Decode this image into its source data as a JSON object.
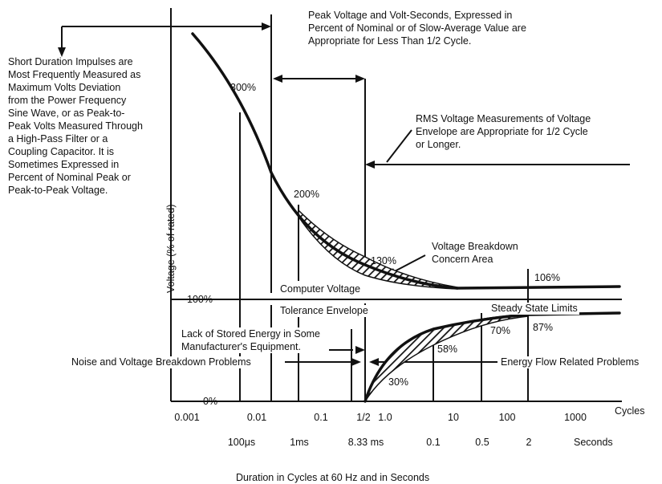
{
  "notes": {
    "peak": "Peak Voltage and Volt-Seconds, Expressed in\nPercent of Nominal or of Slow-Average Value are\nAppropriate for Less Than 1/2 Cycle.",
    "short": "Short Duration Impulses are\nMost Frequently Measured as\nMaximum Volts Deviation\nfrom the Power Frequency\nSine Wave, or as Peak-to-\nPeak Volts Measured Through\na High-Pass Filter or a\nCoupling Capacitor. It is\nSometimes Expressed in\nPercent of Nominal Peak or\nPeak-to-Peak Voltage.",
    "rms": "RMS Voltage Measurements of Voltage\nEnvelope are Appropriate for 1/2 Cycle\nor Longer.",
    "breakdown_concern": "Voltage Breakdown\nConcern Area",
    "computer_voltage": "Computer Voltage",
    "tolerance_envelope": "Tolerance Envelope",
    "steady_state": "Steady State Limits",
    "stored_energy": "Lack of Stored Energy in Some\nManufacturer's Equipment.",
    "noise": "Noise and Voltage Breakdown Problems",
    "energy_flow": "Energy Flow Related Problems"
  },
  "axes": {
    "ylabel": "Voltage (% of rated)",
    "y100": "100%",
    "y0": "0%",
    "cycles_label": "Cycles",
    "seconds_label": "Seconds",
    "xlabel": "Duration in Cycles at 60 Hz and in Seconds",
    "cycle_ticks": [
      "0.001",
      "0.01",
      "0.1",
      "1/2",
      "1.0",
      "10",
      "100",
      "1000"
    ],
    "second_ticks": [
      "100μs",
      "1ms",
      "8.33 ms",
      "0.1",
      "0.5",
      "2"
    ]
  },
  "chart_data": {
    "type": "line",
    "title": "",
    "xlabel": "Duration in Cycles at 60 Hz and in Seconds",
    "ylabel": "Voltage (% of rated)",
    "x_scale": "log (cycles)",
    "series": [
      {
        "name": "",
        "x": [
          0.01,
          0.1,
          0.5,
          100
        ],
        "y": [
          300,
          200,
          130,
          106
        ]
      },
      {
        "name": "",
        "x": [
          0.5,
          10,
          100,
          1000
        ],
        "y": [
          30,
          58,
          70,
          87
        ]
      }
    ],
    "point_labels": [
      "300%",
      "200%",
      "130%",
      "106%",
      "30%",
      "58%",
      "70%",
      "87%"
    ]
  }
}
